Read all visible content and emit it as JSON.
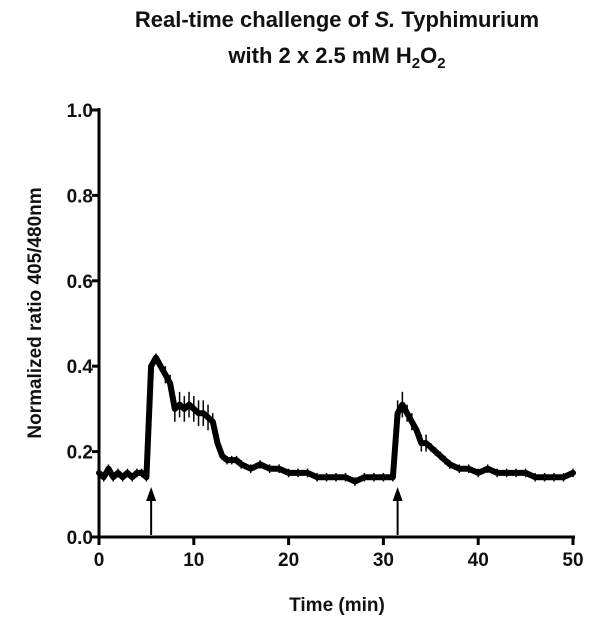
{
  "chart_data": {
    "type": "line",
    "title": {
      "line1_prefix": "Real-time challenge of ",
      "line1_italic": "S.",
      "line1_suffix": " Typhimurium",
      "line2_prefix": "with 2 x 2.5 mM H",
      "line2_sub1": "2",
      "line2_mid": "O",
      "line2_sub2": "2"
    },
    "xlabel": "Time (min)",
    "ylabel": "Normalized ratio 405/480nm",
    "xlim": [
      0,
      50
    ],
    "ylim": [
      0,
      1.0
    ],
    "xticks": [
      0,
      10,
      20,
      30,
      40,
      50
    ],
    "xtick_labels": [
      "0",
      "10",
      "20",
      "30",
      "40",
      "50"
    ],
    "yticks": [
      0,
      0.2,
      0.4,
      0.6,
      0.8,
      1.0
    ],
    "ytick_labels": [
      "0.0",
      "0.2",
      "0.4",
      "0.6",
      "0.8",
      "1.0"
    ],
    "grid": false,
    "line_color": "#000000",
    "series": [
      {
        "x": [
          0,
          0.5,
          1,
          1.5,
          2,
          2.5,
          3,
          3.5,
          4,
          4.5,
          5,
          5.5,
          6,
          6.5,
          7,
          7.5,
          8,
          8.5,
          9,
          9.5,
          10,
          10.5,
          11,
          11.5,
          12,
          12.5,
          13,
          13.5,
          14,
          14.5,
          15,
          16,
          17,
          18,
          19,
          20,
          21,
          22,
          23,
          24,
          25,
          26,
          27,
          28,
          29,
          30,
          31,
          31.5,
          32,
          32.5,
          33,
          33.5,
          34,
          34.5,
          35,
          35.5,
          36,
          36.5,
          37,
          38,
          39,
          40,
          41,
          42,
          43,
          44,
          45,
          46,
          47,
          48,
          49,
          50
        ],
        "y": [
          0.15,
          0.14,
          0.16,
          0.14,
          0.15,
          0.14,
          0.15,
          0.14,
          0.15,
          0.15,
          0.14,
          0.4,
          0.42,
          0.4,
          0.38,
          0.36,
          0.3,
          0.31,
          0.3,
          0.31,
          0.3,
          0.29,
          0.29,
          0.28,
          0.27,
          0.22,
          0.19,
          0.18,
          0.18,
          0.18,
          0.17,
          0.16,
          0.17,
          0.16,
          0.16,
          0.15,
          0.15,
          0.15,
          0.14,
          0.14,
          0.14,
          0.14,
          0.13,
          0.14,
          0.14,
          0.14,
          0.14,
          0.29,
          0.31,
          0.29,
          0.27,
          0.25,
          0.22,
          0.22,
          0.21,
          0.2,
          0.19,
          0.18,
          0.17,
          0.16,
          0.16,
          0.15,
          0.16,
          0.15,
          0.15,
          0.15,
          0.15,
          0.14,
          0.14,
          0.14,
          0.14,
          0.15
        ],
        "err": [
          0.01,
          0.01,
          0.01,
          0.01,
          0.01,
          0.01,
          0.01,
          0.01,
          0.01,
          0.01,
          0.01,
          0.01,
          0.01,
          0.01,
          0.02,
          0.02,
          0.03,
          0.03,
          0.03,
          0.03,
          0.03,
          0.03,
          0.03,
          0.03,
          0.02,
          0.01,
          0.01,
          0.01,
          0.01,
          0.01,
          0.01,
          0.01,
          0.01,
          0.01,
          0.01,
          0.01,
          0.01,
          0.01,
          0.01,
          0.01,
          0.01,
          0.01,
          0.01,
          0.01,
          0.01,
          0.01,
          0.01,
          0.03,
          0.03,
          0.02,
          0.02,
          0.01,
          0.02,
          0.02,
          0.01,
          0.01,
          0.01,
          0.01,
          0.01,
          0.01,
          0.01,
          0.01,
          0.01,
          0.01,
          0.01,
          0.01,
          0.01,
          0.01,
          0.01,
          0.01,
          0.01,
          0.01
        ]
      }
    ],
    "annotations": [
      {
        "type": "arrow",
        "x": 5.5
      },
      {
        "type": "arrow",
        "x": 31.5
      }
    ]
  }
}
